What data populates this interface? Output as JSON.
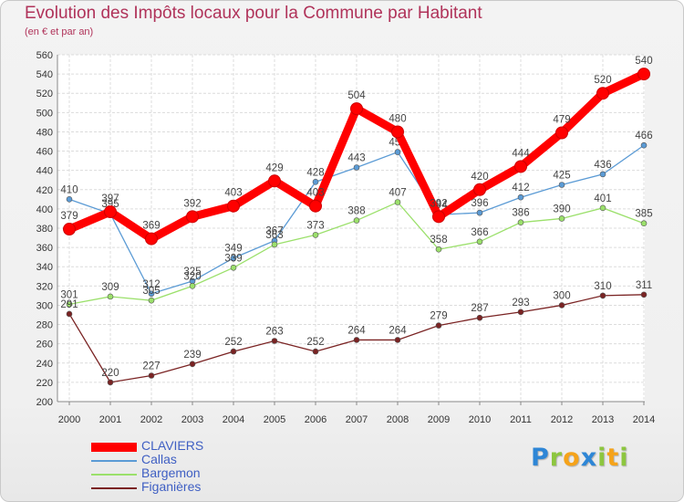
{
  "header": {
    "title": "Evolution des Impôts locaux pour la Commune par Habitant",
    "subtitle": "(en € et par an)"
  },
  "logo": {
    "text": "Proxiti",
    "letters": [
      {
        "char": "P",
        "color": "#2e86d6"
      },
      {
        "char": "r",
        "color": "#8dc63f"
      },
      {
        "char": "o",
        "color": "#f5a31a"
      },
      {
        "char": "x",
        "color": "#2e86d6"
      },
      {
        "char": "i",
        "color": "#8dc63f"
      },
      {
        "char": "t",
        "color": "#f5a31a"
      },
      {
        "char": "i",
        "color": "#8dc63f"
      }
    ]
  },
  "chart_data": {
    "type": "line",
    "title": "Evolution des Impôts locaux pour la Commune par Habitant",
    "subtitle": "(en € et par an)",
    "xlabel": "",
    "ylabel": "",
    "x": [
      "2000",
      "2001",
      "2002",
      "2003",
      "2004",
      "2005",
      "2006",
      "2007",
      "2008",
      "2009",
      "2010",
      "2011",
      "2012",
      "2013",
      "2014"
    ],
    "ylim": [
      200,
      560
    ],
    "yticks": [
      200,
      220,
      240,
      260,
      280,
      300,
      320,
      340,
      360,
      380,
      400,
      420,
      440,
      460,
      480,
      500,
      520,
      540,
      560
    ],
    "grid": true,
    "legend_position": "bottom-left",
    "series": [
      {
        "name": "CLAVIERS",
        "color": "#ff0000",
        "emphasis": true,
        "values": [
          379,
          397,
          369,
          392,
          403,
          429,
          403,
          504,
          480,
          392,
          420,
          444,
          479,
          520,
          540
        ]
      },
      {
        "name": "Callas",
        "color": "#5b9bd5",
        "emphasis": false,
        "values": [
          410,
          395,
          312,
          325,
          349,
          367,
          428,
          443,
          459,
          394,
          396,
          412,
          425,
          436,
          466
        ]
      },
      {
        "name": "Bargemon",
        "color": "#9be06b",
        "emphasis": false,
        "values": [
          301,
          309,
          305,
          320,
          339,
          363,
          373,
          388,
          407,
          358,
          366,
          386,
          390,
          401,
          385
        ]
      },
      {
        "name": "Figanières",
        "color": "#7a2323",
        "emphasis": false,
        "values": [
          291,
          220,
          227,
          239,
          252,
          263,
          252,
          264,
          264,
          279,
          287,
          293,
          300,
          310,
          311
        ]
      }
    ]
  }
}
